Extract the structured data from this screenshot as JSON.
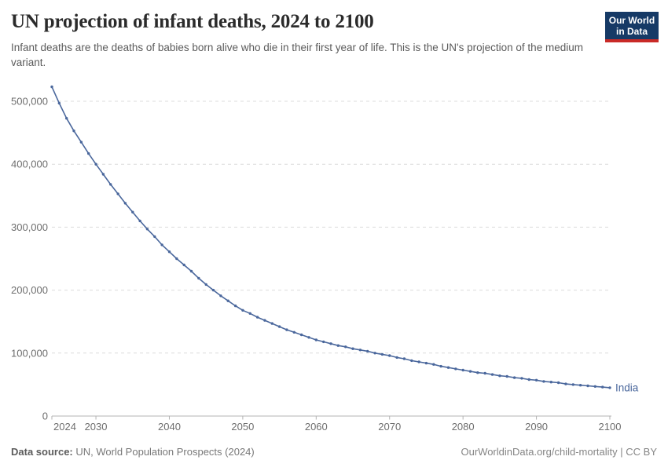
{
  "header": {
    "title": "UN projection of infant deaths, 2024 to 2100",
    "subtitle": "Infant deaths are the deaths of babies born alive who die in their first year of life. This is the UN's projection of the medium variant.",
    "logo": {
      "line1": "Our World",
      "line2": "in Data",
      "bg_color": "#163a66",
      "accent_color": "#c92a27"
    }
  },
  "footer": {
    "datasource_label": "Data source:",
    "datasource_value": " UN, World Population Prospects (2024)",
    "attribution": "OurWorldinData.org/child-mortality | CC BY"
  },
  "chart_data": {
    "type": "line",
    "title": "UN projection of infant deaths, 2024 to 2100",
    "xlabel": "",
    "ylabel": "",
    "xlim": [
      2024,
      2100
    ],
    "ylim": [
      0,
      540000
    ],
    "grid": "horizontal-dashed",
    "legend_position": "end-of-line-label",
    "x_ticks": [
      2024,
      2030,
      2040,
      2050,
      2060,
      2070,
      2080,
      2090,
      2100
    ],
    "y_ticks": [
      0,
      100000,
      200000,
      300000,
      400000,
      500000
    ],
    "y_tick_labels": [
      "0",
      "100,000",
      "200,000",
      "300,000",
      "400,000",
      "500,000"
    ],
    "series": [
      {
        "name": "India",
        "color": "#4a679c",
        "marker": "point",
        "years": [
          2024,
          2025,
          2026,
          2027,
          2028,
          2029,
          2030,
          2031,
          2032,
          2033,
          2034,
          2035,
          2036,
          2037,
          2038,
          2039,
          2040,
          2041,
          2042,
          2043,
          2044,
          2045,
          2046,
          2047,
          2048,
          2049,
          2050,
          2051,
          2052,
          2053,
          2054,
          2055,
          2056,
          2057,
          2058,
          2059,
          2060,
          2061,
          2062,
          2063,
          2064,
          2065,
          2066,
          2067,
          2068,
          2069,
          2070,
          2071,
          2072,
          2073,
          2074,
          2075,
          2076,
          2077,
          2078,
          2079,
          2080,
          2081,
          2082,
          2083,
          2084,
          2085,
          2086,
          2087,
          2088,
          2089,
          2090,
          2091,
          2092,
          2093,
          2094,
          2095,
          2096,
          2097,
          2098,
          2099,
          2100
        ],
        "values": [
          523000,
          497000,
          473000,
          453000,
          435000,
          417000,
          400000,
          384000,
          368000,
          353000,
          338000,
          324000,
          310000,
          297000,
          285000,
          272000,
          261000,
          250000,
          240000,
          230000,
          219000,
          209000,
          200000,
          191000,
          183000,
          175000,
          168000,
          163000,
          157000,
          152000,
          147000,
          142000,
          137000,
          133000,
          129000,
          125000,
          121000,
          118000,
          115000,
          112000,
          110000,
          107000,
          105000,
          103000,
          100000,
          98000,
          96000,
          93000,
          91000,
          88000,
          86000,
          84000,
          82000,
          79000,
          77000,
          75000,
          73000,
          71000,
          69000,
          68000,
          66000,
          64000,
          63000,
          61000,
          60000,
          58000,
          57000,
          55000,
          54000,
          53000,
          51000,
          50000,
          49000,
          48000,
          47000,
          46000,
          45000
        ]
      }
    ]
  }
}
